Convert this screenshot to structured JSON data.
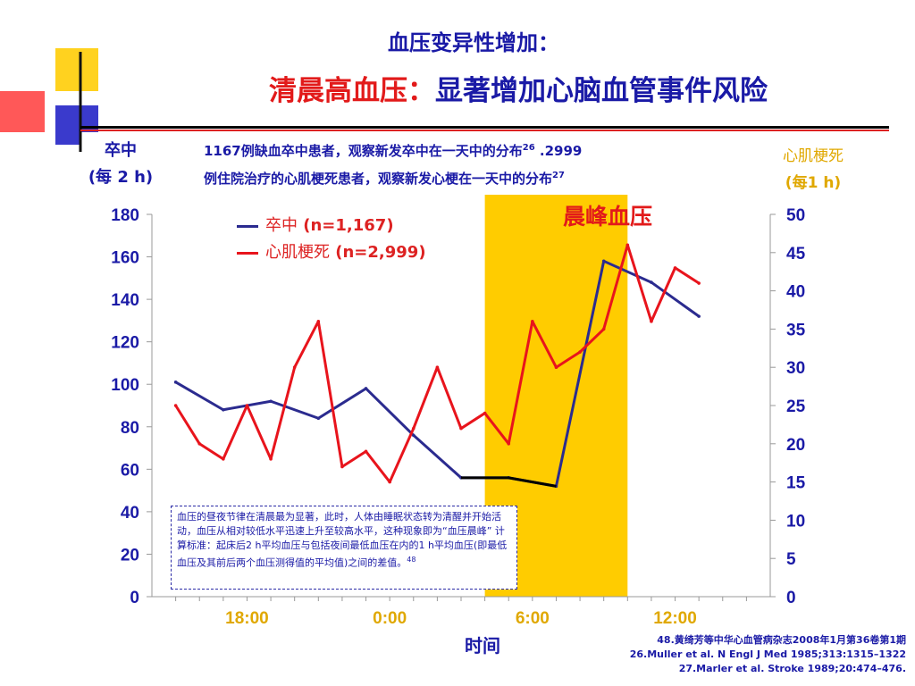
{
  "title": {
    "line1": "血压变异性增加：",
    "line2_red": "清晨高血压：",
    "line2_blue": "显著增加心脑血管事件风险"
  },
  "left_axis_title": [
    "卒中",
    "(每 2 h)"
  ],
  "right_axis_title": [
    "心肌梗死",
    "(每1 h)"
  ],
  "description": {
    "line1_main": "1167例缺血卒中患者，观察新发卒中在一天中的分布",
    "line1_ref": "26",
    "line1_tail": " .2999",
    "line2_main": "例住院治疗的心肌梗死患者，观察新发心梗在一天中的分布",
    "line2_ref": "27"
  },
  "peak_label": "晨峰血压",
  "legend": [
    {
      "name_cn": "卒中",
      "count": " (n=1,167)",
      "color": "#2b2b8f"
    },
    {
      "name_cn": "心肌梗死",
      "count": " (n=2,999)",
      "color": "#e8141c"
    }
  ],
  "note": {
    "text": "血压的昼夜节律在清晨最为显著，此时，人体由睡眠状态转为清醒并开始活动，血压从相对较低水平迅速上升至较高水平，这种现象即为“血压晨峰” 计算标准：起床后2 h平均血压与包括夜间最低血压在内的1 h平均血压(即最低血压及其前后两个血压测得值的平均值)之间的差值。",
    "ref": "48"
  },
  "x_axis_title": "时间",
  "references": [
    "48.黄绮芳等中华心血管病杂志2008年1月第36卷第1期",
    "26.Muller et al. N Engl J Med 1985;313:1315–1322",
    "27.Marler et al. Stroke 1989;20:474–476."
  ],
  "colors": {
    "stroke_line": "#2b2b8f",
    "mi_line": "#e8141c",
    "peak_band": "#ffcc00",
    "axis_text_blue": "#1a1aa6",
    "axis_text_gold": "#e0a800"
  },
  "chart_data": {
    "type": "line",
    "xlabel": "时间",
    "x_tick_labels": [
      "18:00",
      "0:00",
      "6:00",
      "12:00"
    ],
    "x_tick_hours": [
      18,
      24,
      30,
      36
    ],
    "xlim_hours": [
      14,
      40
    ],
    "highlight_band_hours": [
      28,
      34
    ],
    "highlight_label": "晨峰血压",
    "y_left": {
      "label": "卒中 (每 2 h)",
      "ylim": [
        0,
        180
      ],
      "ticks": [
        0,
        20,
        40,
        60,
        80,
        100,
        120,
        140,
        160,
        180
      ]
    },
    "y_right": {
      "label": "心肌梗死 (每1 h)",
      "ylim": [
        0,
        50
      ],
      "ticks": [
        0,
        5,
        10,
        15,
        20,
        25,
        30,
        35,
        40,
        45,
        50
      ]
    },
    "series": [
      {
        "name": "卒中 (n=1,167)",
        "axis": "left",
        "color": "#2b2b8f",
        "x_hours": [
          15,
          17,
          19,
          21,
          23,
          25,
          27,
          29,
          31,
          33,
          35,
          37
        ],
        "values": [
          101,
          88,
          92,
          84,
          98,
          76,
          56,
          56,
          52,
          158,
          148,
          132
        ]
      },
      {
        "name": "心肌梗死 (n=2,999)",
        "axis": "right",
        "color": "#e8141c",
        "x_hours": [
          15,
          16,
          17,
          18,
          19,
          20,
          21,
          22,
          23,
          24,
          25,
          26,
          27,
          28,
          29,
          30,
          31,
          32,
          33,
          34,
          35,
          36,
          37
        ],
        "values": [
          25,
          20,
          18,
          25,
          18,
          30,
          36,
          17,
          19,
          15,
          22,
          30,
          22,
          24,
          20,
          36,
          30,
          32,
          35,
          46,
          36,
          43,
          41
        ]
      }
    ]
  }
}
